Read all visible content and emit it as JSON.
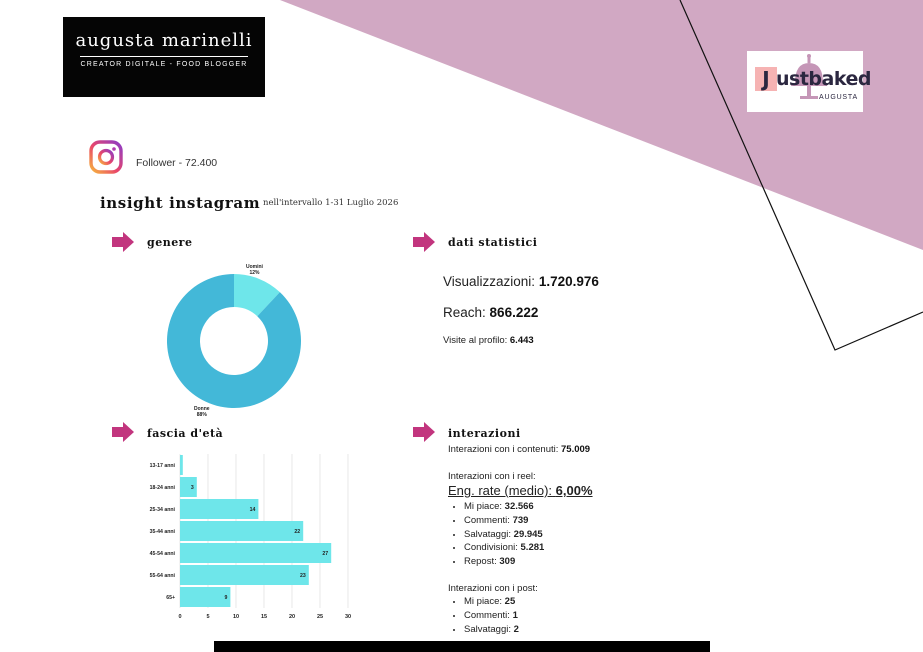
{
  "brand": {
    "name": "augusta marinelli",
    "subtitle": "CREATOR DIGITALE - FOOD BLOGGER"
  },
  "logo": {
    "j": "J",
    "word": "ustbaked",
    "sub": "AUGUSTA"
  },
  "profile": {
    "follower_text": "Follower - 72.400"
  },
  "insight": {
    "title": "insight instagram",
    "period": "nell'intervallo 1-31 Luglio 2026"
  },
  "sections": {
    "genere": "genere",
    "dati": "dati statistici",
    "eta": "fascia d'età",
    "interazioni": "interazioni"
  },
  "stats": {
    "views_label": "Visualizzazioni:",
    "views_value": "1.720.976",
    "reach_label": "Reach:",
    "reach_value": "866.222",
    "visits_label": "Visite al profilo:",
    "visits_value": "6.443"
  },
  "interactions": {
    "content_label": "Interazioni con i contenuti:",
    "content_value": "75.009",
    "reel_label": "Interazioni con i reel:",
    "eng_label": "Eng. rate (medio):",
    "eng_value": "6,00%",
    "reel_items": [
      {
        "label": "Mi piace:",
        "value": "32.566"
      },
      {
        "label": "Commenti:",
        "value": "739"
      },
      {
        "label": "Salvataggi:",
        "value": "29.945"
      },
      {
        "label": "Condivisioni:",
        "value": "5.281"
      },
      {
        "label": "Repost:",
        "value": "309"
      }
    ],
    "post_label": "Interazioni con i post:",
    "post_items": [
      {
        "label": "Mi piace:",
        "value": "25"
      },
      {
        "label": "Commenti:",
        "value": "1"
      },
      {
        "label": "Salvataggi:",
        "value": "2"
      }
    ]
  },
  "chart_data": [
    {
      "type": "pie",
      "categories": [
        "Uomini",
        "Donne"
      ],
      "values": [
        12,
        88
      ],
      "labels": [
        "Uomini\n12%",
        "Donne\n88%"
      ],
      "colors": [
        "#6ee6ea",
        "#43b8d8"
      ],
      "donut": true
    },
    {
      "type": "bar",
      "orientation": "horizontal",
      "categories": [
        "13-17 anni",
        "18-24 anni",
        "25-34 anni",
        "35-44 anni",
        "45-54 anni",
        "55-64 anni",
        "65+"
      ],
      "values": [
        0.5,
        3,
        14,
        22,
        27,
        23,
        9
      ],
      "data_labels": [
        "",
        "3",
        "14",
        "22",
        "27",
        "23",
        "9"
      ],
      "xlim": [
        0,
        30
      ],
      "xticks": [
        "0",
        "5",
        "10",
        "15",
        "20",
        "25",
        "30"
      ],
      "grid": true,
      "color": "#6ee6ea"
    }
  ],
  "colors": {
    "accent_arrow": "#c2357e",
    "mauve": "#d1a8c3",
    "bar": "#6ee6ea",
    "donut_main": "#43b8d8",
    "donut_minor": "#6ee6ea"
  }
}
